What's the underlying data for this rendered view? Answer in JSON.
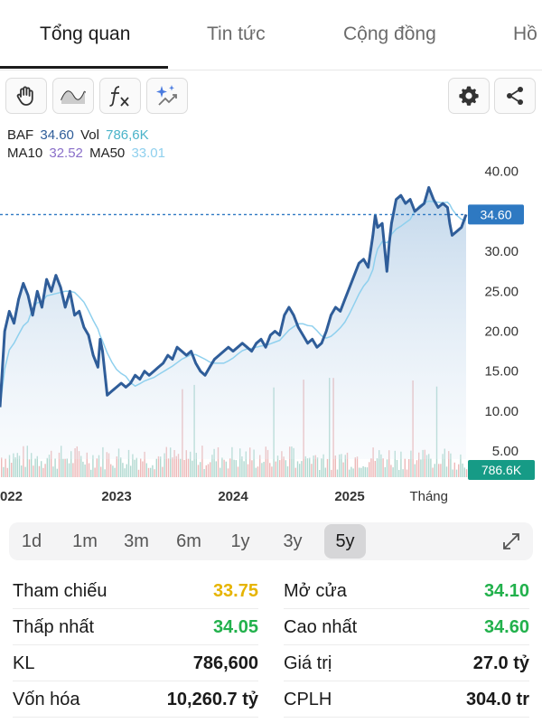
{
  "tabs": [
    {
      "label": "Tổng quan",
      "active": true
    },
    {
      "label": "Tin tức",
      "active": false
    },
    {
      "label": "Cộng đồng",
      "active": false
    },
    {
      "label": "Hồ",
      "active": false
    }
  ],
  "toolbar": {
    "left_tools": [
      "hand-icon",
      "wave-icon",
      "fx-icon",
      "sparkle-icon"
    ],
    "right_tools": [
      "gear-icon",
      "share-icon"
    ]
  },
  "legend": {
    "symbol": "BAF",
    "price": "34.60",
    "vol_label": "Vol",
    "vol_value": "786,6K",
    "ma10_label": "MA10",
    "ma10_value": "32.52",
    "ma50_label": "MA50",
    "ma50_value": "33.01"
  },
  "chart_data": {
    "type": "line",
    "y_ticks": [
      "40.00",
      "35.00",
      "30.00",
      "25.00",
      "20.00",
      "15.00",
      "10.00",
      "5.00"
    ],
    "y_tick_values": [
      40,
      35,
      30,
      25,
      20,
      15,
      10,
      5
    ],
    "ylim": [
      4,
      42
    ],
    "x_ticks": [
      "022",
      "2023",
      "2024",
      "2025",
      "Tháng"
    ],
    "x_tick_positions": [
      0.0,
      0.25,
      0.5,
      0.75,
      0.92
    ],
    "current_price_label": "34.60",
    "current_price": 34.6,
    "volume_label": "786.6K",
    "price_series": [
      [
        0.0,
        10.5
      ],
      [
        0.01,
        20.0
      ],
      [
        0.02,
        22.5
      ],
      [
        0.03,
        21.0
      ],
      [
        0.04,
        24.0
      ],
      [
        0.05,
        26.0
      ],
      [
        0.06,
        24.5
      ],
      [
        0.07,
        22.0
      ],
      [
        0.08,
        25.0
      ],
      [
        0.09,
        23.0
      ],
      [
        0.1,
        26.5
      ],
      [
        0.11,
        25.0
      ],
      [
        0.12,
        27.0
      ],
      [
        0.13,
        25.5
      ],
      [
        0.14,
        23.0
      ],
      [
        0.15,
        25.0
      ],
      [
        0.16,
        22.0
      ],
      [
        0.17,
        22.5
      ],
      [
        0.18,
        20.5
      ],
      [
        0.19,
        19.5
      ],
      [
        0.2,
        17.0
      ],
      [
        0.21,
        15.5
      ],
      [
        0.215,
        19.0
      ],
      [
        0.22,
        17.5
      ],
      [
        0.23,
        12.0
      ],
      [
        0.24,
        12.5
      ],
      [
        0.25,
        13.0
      ],
      [
        0.26,
        13.5
      ],
      [
        0.27,
        13.0
      ],
      [
        0.28,
        13.5
      ],
      [
        0.29,
        14.5
      ],
      [
        0.3,
        14.0
      ],
      [
        0.31,
        15.0
      ],
      [
        0.32,
        14.5
      ],
      [
        0.33,
        15.0
      ],
      [
        0.34,
        15.5
      ],
      [
        0.35,
        16.0
      ],
      [
        0.36,
        17.0
      ],
      [
        0.37,
        16.5
      ],
      [
        0.38,
        18.0
      ],
      [
        0.39,
        17.5
      ],
      [
        0.4,
        17.0
      ],
      [
        0.41,
        17.5
      ],
      [
        0.42,
        16.0
      ],
      [
        0.43,
        15.0
      ],
      [
        0.44,
        14.5
      ],
      [
        0.45,
        15.5
      ],
      [
        0.46,
        16.5
      ],
      [
        0.47,
        17.0
      ],
      [
        0.48,
        17.5
      ],
      [
        0.49,
        18.0
      ],
      [
        0.5,
        17.5
      ],
      [
        0.51,
        18.0
      ],
      [
        0.52,
        18.5
      ],
      [
        0.53,
        18.0
      ],
      [
        0.54,
        17.5
      ],
      [
        0.55,
        18.5
      ],
      [
        0.56,
        19.0
      ],
      [
        0.57,
        18.0
      ],
      [
        0.58,
        19.5
      ],
      [
        0.59,
        20.0
      ],
      [
        0.6,
        19.5
      ],
      [
        0.61,
        22.0
      ],
      [
        0.62,
        23.0
      ],
      [
        0.63,
        22.0
      ],
      [
        0.64,
        20.5
      ],
      [
        0.65,
        19.5
      ],
      [
        0.66,
        18.5
      ],
      [
        0.67,
        19.0
      ],
      [
        0.68,
        18.0
      ],
      [
        0.69,
        18.5
      ],
      [
        0.7,
        20.0
      ],
      [
        0.71,
        22.0
      ],
      [
        0.72,
        23.0
      ],
      [
        0.73,
        22.5
      ],
      [
        0.74,
        24.0
      ],
      [
        0.75,
        25.5
      ],
      [
        0.76,
        27.0
      ],
      [
        0.77,
        28.5
      ],
      [
        0.78,
        29.0
      ],
      [
        0.79,
        28.0
      ],
      [
        0.8,
        32.0
      ],
      [
        0.805,
        34.5
      ],
      [
        0.81,
        33.0
      ],
      [
        0.82,
        33.5
      ],
      [
        0.83,
        27.5
      ],
      [
        0.835,
        31.0
      ],
      [
        0.84,
        33.5
      ],
      [
        0.85,
        36.5
      ],
      [
        0.86,
        37.0
      ],
      [
        0.87,
        36.0
      ],
      [
        0.88,
        36.5
      ],
      [
        0.89,
        35.0
      ],
      [
        0.9,
        35.5
      ],
      [
        0.91,
        36.0
      ],
      [
        0.92,
        38.0
      ],
      [
        0.93,
        36.5
      ],
      [
        0.94,
        35.5
      ],
      [
        0.95,
        36.0
      ],
      [
        0.96,
        35.5
      ],
      [
        0.965,
        33.5
      ],
      [
        0.97,
        32.0
      ],
      [
        0.98,
        32.5
      ],
      [
        0.99,
        33.0
      ],
      [
        1.0,
        34.6
      ]
    ]
  },
  "ranges": [
    {
      "label": "1d",
      "active": false
    },
    {
      "label": "1m",
      "active": false
    },
    {
      "label": "3m",
      "active": false
    },
    {
      "label": "6m",
      "active": false
    },
    {
      "label": "1y",
      "active": false
    },
    {
      "label": "3y",
      "active": false
    },
    {
      "label": "5y",
      "active": true
    }
  ],
  "stats": [
    [
      {
        "label": "Tham chiếu",
        "value": "33.75",
        "color": "#e6b400"
      },
      {
        "label": "Mở cửa",
        "value": "34.10",
        "color": "#22b14c"
      }
    ],
    [
      {
        "label": "Thấp nhất",
        "value": "34.05",
        "color": "#22b14c"
      },
      {
        "label": "Cao nhất",
        "value": "34.60",
        "color": "#22b14c"
      }
    ],
    [
      {
        "label": "KL",
        "value": "786,600",
        "color": "#1a1a1a"
      },
      {
        "label": "Giá trị",
        "value": "27.0 tỷ",
        "color": "#1a1a1a"
      }
    ],
    [
      {
        "label": "Vốn hóa",
        "value": "10,260.7 tỷ",
        "color": "#1a1a1a"
      },
      {
        "label": "CPLH",
        "value": "304.0 tr",
        "color": "#1a1a1a"
      }
    ]
  ],
  "colors": {
    "price_line": "#2f5d99",
    "ma10": "#8a6fc9",
    "ma50": "#8fd0ee",
    "vol_text": "#4ab3c9",
    "price_text": "#2f5d99",
    "badge_price": "#2e79c2",
    "badge_volume": "#169b86"
  }
}
